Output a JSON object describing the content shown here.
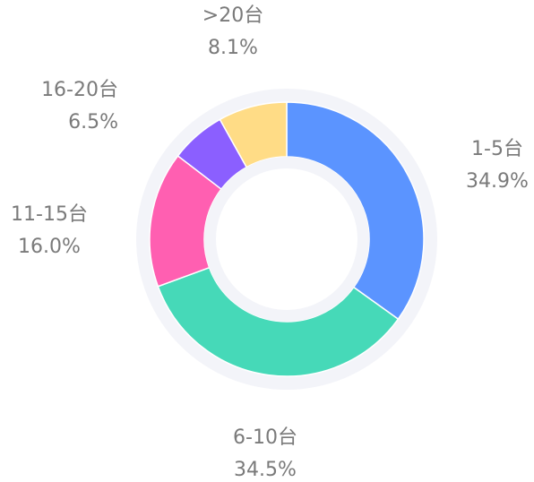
{
  "chart_data": {
    "type": "pie",
    "categories": [
      "1-5台",
      "6-10台",
      "11-15台",
      "16-20台",
      ">20台"
    ],
    "values": [
      34.9,
      34.5,
      16.0,
      6.5,
      8.1
    ],
    "value_labels": [
      "34.9%",
      "34.5%",
      "16.0%",
      "6.5%",
      "8.1%"
    ],
    "colors": [
      "#5b94ff",
      "#46d9b8",
      "#ff5fb1",
      "#8b5fff",
      "#ffdc86"
    ]
  }
}
